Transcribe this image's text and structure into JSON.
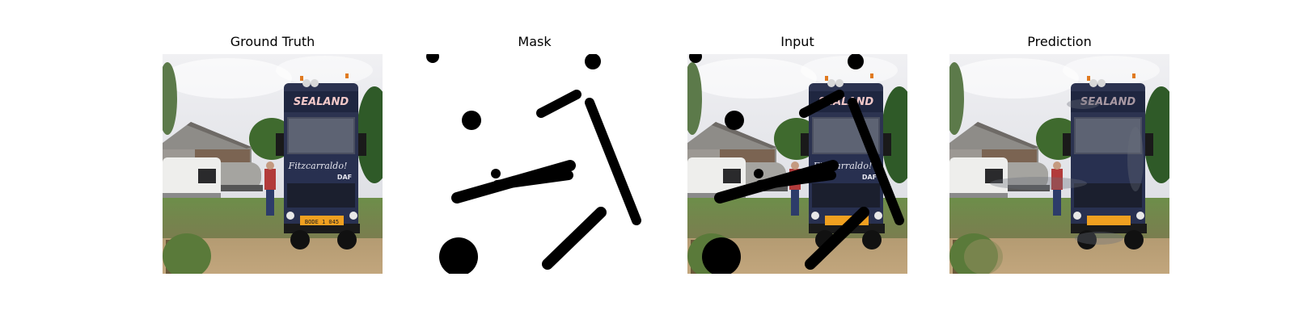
{
  "panels": [
    {
      "title": "Ground Truth",
      "kind": "ground-truth"
    },
    {
      "title": "Mask",
      "kind": "mask"
    },
    {
      "title": "Input",
      "kind": "input"
    },
    {
      "title": "Prediction",
      "kind": "prediction"
    }
  ],
  "scene": {
    "truck_sign_text": "SEALAND",
    "truck_door_text": "Fitzcarraldo!",
    "truck_brand_text": "DAF",
    "plate_text": "BODE 1 045"
  }
}
